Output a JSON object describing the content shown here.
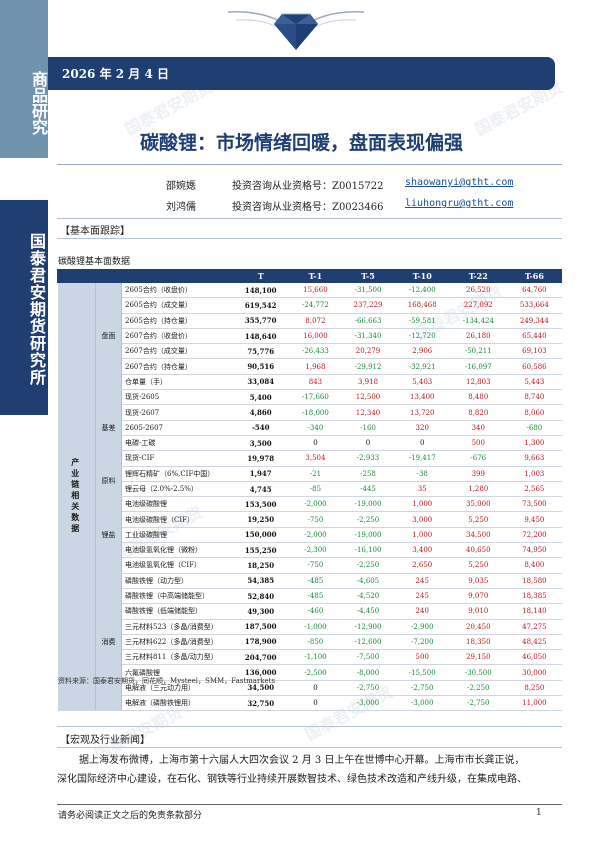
{
  "side": {
    "top_label": "商品研究",
    "mid_label": "国泰君安期货研究所"
  },
  "header": {
    "date": "2026 年 2 月 4 日"
  },
  "title": "碳酸锂：市场情绪回暖，盘面表现偏强",
  "analysts": [
    {
      "name": "邵婉嫕",
      "cert": "投资咨询从业资格号：Z0015722",
      "email": "shaowanyi@gtht.com"
    },
    {
      "name": "刘鸿儒",
      "cert": "投资咨询从业资格号：Z0023466",
      "email": "liuhongru@gtht.com"
    }
  ],
  "section1": "【基本面跟踪】",
  "table_title": "碳酸锂基本面数据",
  "table": {
    "headers": [
      "T",
      "T-1",
      "T-5",
      "T-10",
      "T-22",
      "T-66"
    ],
    "group_main": "产业链相关数据",
    "rows": [
      {
        "g": "盘面",
        "label": "2605合约（收盘价）",
        "v": [
          "148,100",
          "15,660",
          "-31,500",
          "-12,400",
          "26,520",
          "64,760"
        ],
        "c": [
          "black",
          "red",
          "green",
          "green",
          "red",
          "red"
        ]
      },
      {
        "g": "",
        "label": "2605合约（成交量）",
        "v": [
          "619,542",
          "-24,772",
          "237,229",
          "168,468",
          "227,092",
          "533,664"
        ],
        "c": [
          "black",
          "green",
          "red",
          "red",
          "red",
          "red"
        ]
      },
      {
        "g": "",
        "label": "2605合约（持仓量）",
        "v": [
          "355,770",
          "8,072",
          "-66,663",
          "-59,581",
          "-134,424",
          "249,344"
        ],
        "c": [
          "black",
          "red",
          "green",
          "green",
          "green",
          "red"
        ]
      },
      {
        "g": "",
        "label": "2607合约（收盘价）",
        "v": [
          "148,640",
          "16,000",
          "-31,340",
          "-12,720",
          "26,180",
          "65,440"
        ],
        "c": [
          "black",
          "red",
          "green",
          "green",
          "red",
          "red"
        ]
      },
      {
        "g": "",
        "label": "2607合约（成交量）",
        "v": [
          "75,776",
          "-26,433",
          "20,279",
          "2,906",
          "-50,211",
          "69,103"
        ],
        "c": [
          "black",
          "green",
          "red",
          "red",
          "green",
          "red"
        ]
      },
      {
        "g": "",
        "label": "2607合约（持仓量）",
        "v": [
          "90,516",
          "1,968",
          "-29,912",
          "-32,921",
          "-16,097",
          "60,586"
        ],
        "c": [
          "black",
          "red",
          "green",
          "green",
          "green",
          "red"
        ]
      },
      {
        "g": "",
        "label": "仓单量（手）",
        "v": [
          "33,084",
          "843",
          "3,918",
          "5,403",
          "12,803",
          "5,443"
        ],
        "c": [
          "black",
          "red",
          "red",
          "red",
          "red",
          "red"
        ]
      },
      {
        "g": "基差",
        "label": "现货-2605",
        "v": [
          "5,400",
          "-17,660",
          "12,500",
          "13,400",
          "8,480",
          "8,740"
        ],
        "c": [
          "black",
          "green",
          "red",
          "red",
          "red",
          "red"
        ]
      },
      {
        "g": "",
        "label": "现货-2607",
        "v": [
          "4,860",
          "-18,000",
          "12,340",
          "13,720",
          "8,820",
          "8,060"
        ],
        "c": [
          "black",
          "green",
          "red",
          "red",
          "red",
          "red"
        ]
      },
      {
        "g": "",
        "label": "2605-2607",
        "v": [
          "-540",
          "-340",
          "-160",
          "320",
          "340",
          "-680"
        ],
        "c": [
          "black",
          "green",
          "green",
          "red",
          "red",
          "green"
        ]
      },
      {
        "g": "",
        "label": "电碳-工碳",
        "v": [
          "3,500",
          "0",
          "0",
          "0",
          "500",
          "1,300"
        ],
        "c": [
          "black",
          "dark",
          "dark",
          "dark",
          "red",
          "red"
        ]
      },
      {
        "g": "",
        "label": "现货-CIF",
        "v": [
          "19,978",
          "3,504",
          "-2,933",
          "-19,417",
          "-676",
          "9,663"
        ],
        "c": [
          "black",
          "red",
          "green",
          "green",
          "green",
          "red"
        ]
      },
      {
        "g": "原料",
        "label": "锂辉石精矿（6%,CIF中国）",
        "v": [
          "1,947",
          "-21",
          "-258",
          "-38",
          "399",
          "1,003"
        ],
        "c": [
          "black",
          "green",
          "green",
          "green",
          "red",
          "red"
        ]
      },
      {
        "g": "",
        "label": "锂云母（2.0%-2.5%）",
        "v": [
          "4,745",
          "-85",
          "-445",
          "35",
          "1,280",
          "2,565"
        ],
        "c": [
          "black",
          "green",
          "green",
          "red",
          "red",
          "red"
        ]
      },
      {
        "g": "锂盐",
        "label": "电池级碳酸锂",
        "v": [
          "153,500",
          "-2,000",
          "-19,000",
          "1,000",
          "35,000",
          "73,500"
        ],
        "c": [
          "black",
          "green",
          "green",
          "red",
          "red",
          "red"
        ]
      },
      {
        "g": "",
        "label": "电池级碳酸锂（CIF）",
        "v": [
          "19,250",
          "-750",
          "-2,250",
          "3,000",
          "5,250",
          "9,450"
        ],
        "c": [
          "black",
          "green",
          "green",
          "red",
          "red",
          "red"
        ]
      },
      {
        "g": "",
        "label": "工业级碳酸锂",
        "v": [
          "150,000",
          "-2,000",
          "-19,000",
          "1,000",
          "34,500",
          "72,200"
        ],
        "c": [
          "black",
          "green",
          "green",
          "red",
          "red",
          "red"
        ]
      },
      {
        "g": "",
        "label": "电池级氢氧化锂（微粉）",
        "v": [
          "155,250",
          "-2,300",
          "-16,100",
          "3,400",
          "40,650",
          "74,950"
        ],
        "c": [
          "black",
          "green",
          "green",
          "red",
          "red",
          "red"
        ]
      },
      {
        "g": "",
        "label": "电池级氢氧化锂（CIF）",
        "v": [
          "18,250",
          "-750",
          "-2,250",
          "2,650",
          "5,250",
          "8,400"
        ],
        "c": [
          "black",
          "green",
          "green",
          "red",
          "red",
          "red"
        ]
      },
      {
        "g": "消费",
        "label": "磷酸铁锂（动力型）",
        "v": [
          "54,385",
          "-485",
          "-4,605",
          "245",
          "9,035",
          "18,580"
        ],
        "c": [
          "black",
          "green",
          "green",
          "red",
          "red",
          "red"
        ]
      },
      {
        "g": "",
        "label": "磷酸铁锂（中高端储能型）",
        "v": [
          "52,840",
          "-485",
          "-4,520",
          "245",
          "9,070",
          "18,385"
        ],
        "c": [
          "black",
          "green",
          "green",
          "red",
          "red",
          "red"
        ]
      },
      {
        "g": "",
        "label": "磷酸铁锂（低端储能型）",
        "v": [
          "49,300",
          "-460",
          "-4,450",
          "240",
          "9,010",
          "18,140"
        ],
        "c": [
          "black",
          "green",
          "green",
          "red",
          "red",
          "red"
        ]
      },
      {
        "g": "",
        "label": "三元材料523（多晶/消费型）",
        "v": [
          "187,500",
          "-1,000",
          "-12,900",
          "-2,900",
          "20,450",
          "47,275"
        ],
        "c": [
          "black",
          "green",
          "green",
          "green",
          "red",
          "red"
        ]
      },
      {
        "g": "",
        "label": "三元材料622（多晶/消费型）",
        "v": [
          "178,900",
          "-850",
          "-12,600",
          "-7,200",
          "18,350",
          "48,425"
        ],
        "c": [
          "black",
          "green",
          "green",
          "green",
          "red",
          "red"
        ]
      },
      {
        "g": "",
        "label": "三元材料811（多晶/动力型）",
        "v": [
          "204,700",
          "-1,100",
          "-7,500",
          "500",
          "29,150",
          "46,050"
        ],
        "c": [
          "black",
          "green",
          "green",
          "red",
          "red",
          "red"
        ]
      },
      {
        "g": "",
        "label": "六氟磷酸锂",
        "v": [
          "136,000",
          "-2,500",
          "-8,000",
          "-15,500",
          "-30,500",
          "30,000"
        ],
        "c": [
          "black",
          "green",
          "green",
          "green",
          "green",
          "red"
        ]
      },
      {
        "g": "",
        "label": "电解液（三元动力用）",
        "v": [
          "34,500",
          "0",
          "-2,750",
          "-2,750",
          "-2,250",
          "8,250"
        ],
        "c": [
          "black",
          "dark",
          "green",
          "green",
          "green",
          "red"
        ]
      },
      {
        "g": "",
        "label": "电解液（磷酸铁锂用）",
        "v": [
          "32,750",
          "0",
          "-3,000",
          "-3,000",
          "-2,750",
          "11,000"
        ],
        "c": [
          "black",
          "dark",
          "green",
          "green",
          "green",
          "red"
        ]
      }
    ]
  },
  "source": "资料来源：国泰君安期货，同花顺，Mysteel，SMM，Fastmarkets",
  "section2": "【宏观及行业新闻】",
  "news": [
    "据上海发布微博，上海市第十六届人大四次会议 2 月 3 日上午在世博中心开幕。上海市市长龚正说，",
    "深化国际经济中心建设，在石化、钢铁等行业持续开展数智技术、绿色技术改造和产线升级，在集成电路、"
  ],
  "footer": {
    "disclaimer": "请务必阅读正文之后的免责条款部分",
    "page": "1"
  },
  "watermark": "国泰君安期货"
}
